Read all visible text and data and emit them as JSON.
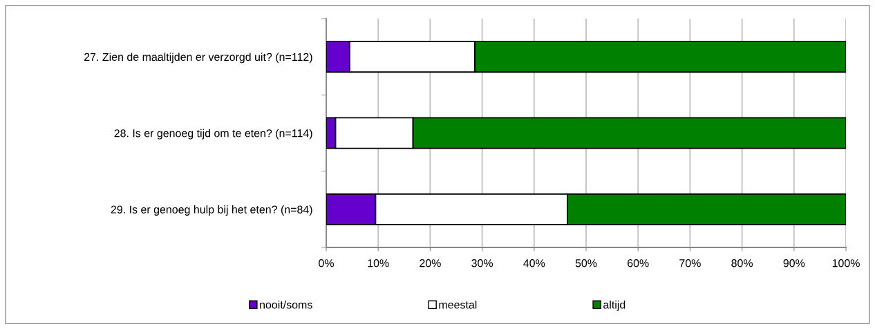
{
  "chart_data": {
    "type": "bar",
    "orientation": "horizontal",
    "stacked": true,
    "categories": [
      "27. Zien de maaltijden er verzorgd uit? (n=112)",
      "28. Is er genoeg tijd om te eten? (n=114)",
      "29. Is er genoeg hulp bij het eten? (n=84)"
    ],
    "series": [
      {
        "name": "nooit/soms",
        "color": "#6600cc",
        "values": [
          4.5,
          1.8,
          9.5
        ]
      },
      {
        "name": "meestal",
        "color": "#ffffff",
        "values": [
          24.1,
          14.9,
          36.9
        ]
      },
      {
        "name": "altijd",
        "color": "#008000",
        "values": [
          71.4,
          83.3,
          53.6
        ]
      }
    ],
    "xlim": [
      0,
      100
    ],
    "xticks": [
      {
        "value": 0,
        "label": "0%"
      },
      {
        "value": 10,
        "label": "10%"
      },
      {
        "value": 20,
        "label": "20%"
      },
      {
        "value": 30,
        "label": "30%"
      },
      {
        "value": 40,
        "label": "40%"
      },
      {
        "value": 50,
        "label": "50%"
      },
      {
        "value": 60,
        "label": "60%"
      },
      {
        "value": 70,
        "label": "70%"
      },
      {
        "value": 80,
        "label": "80%"
      },
      {
        "value": 90,
        "label": "90%"
      },
      {
        "value": 100,
        "label": "100%"
      }
    ],
    "grid": "x",
    "legend": "bottom"
  }
}
